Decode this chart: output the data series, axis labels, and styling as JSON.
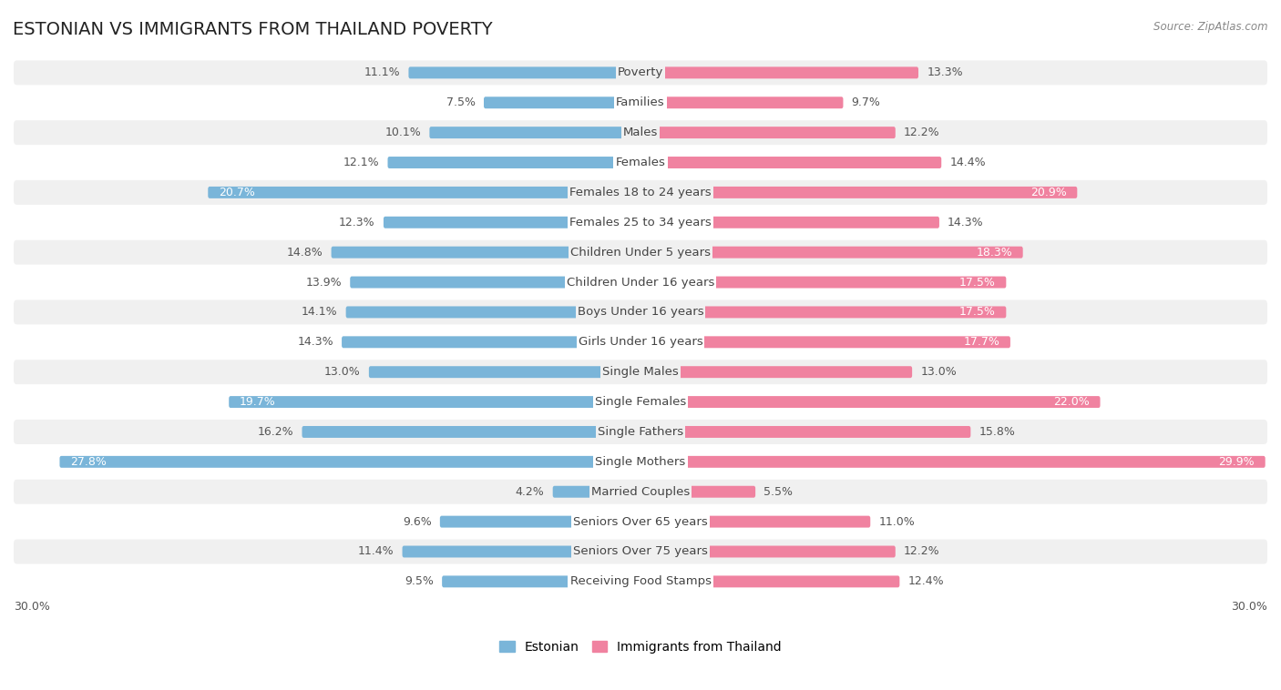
{
  "title": "ESTONIAN VS IMMIGRANTS FROM THAILAND POVERTY",
  "source": "Source: ZipAtlas.com",
  "categories": [
    "Poverty",
    "Families",
    "Males",
    "Females",
    "Females 18 to 24 years",
    "Females 25 to 34 years",
    "Children Under 5 years",
    "Children Under 16 years",
    "Boys Under 16 years",
    "Girls Under 16 years",
    "Single Males",
    "Single Females",
    "Single Fathers",
    "Single Mothers",
    "Married Couples",
    "Seniors Over 65 years",
    "Seniors Over 75 years",
    "Receiving Food Stamps"
  ],
  "estonian": [
    11.1,
    7.5,
    10.1,
    12.1,
    20.7,
    12.3,
    14.8,
    13.9,
    14.1,
    14.3,
    13.0,
    19.7,
    16.2,
    27.8,
    4.2,
    9.6,
    11.4,
    9.5
  ],
  "thailand": [
    13.3,
    9.7,
    12.2,
    14.4,
    20.9,
    14.3,
    18.3,
    17.5,
    17.5,
    17.7,
    13.0,
    22.0,
    15.8,
    29.9,
    5.5,
    11.0,
    12.2,
    12.4
  ],
  "estonian_color": "#7ab5d9",
  "thailand_color": "#f082a0",
  "row_color_odd": "#f0f0f0",
  "row_color_even": "#ffffff",
  "background_color": "#ffffff",
  "max_value": 30.0,
  "legend_estonian": "Estonian",
  "legend_thailand": "Immigrants from Thailand",
  "title_fontsize": 14,
  "label_fontsize": 9.5,
  "value_fontsize": 9
}
